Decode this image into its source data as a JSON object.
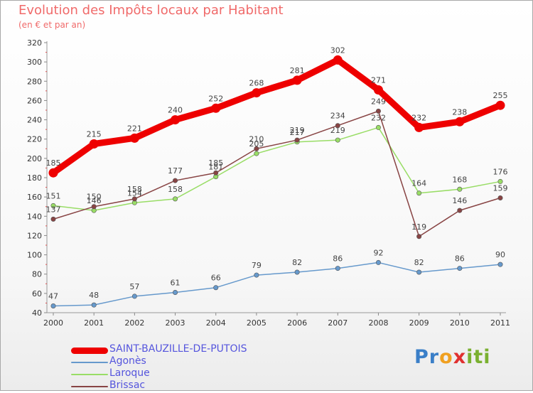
{
  "header": {
    "title": "Evolution des Impôts locaux par Habitant",
    "subtitle": "(en € et par an)"
  },
  "brand": {
    "letters": [
      "P",
      "r",
      "o",
      "x",
      "i",
      "t",
      "i"
    ],
    "colors": [
      "#3a7fc8",
      "#3a7fc8",
      "#f0a020",
      "#e03030",
      "#7ab030",
      "#7ab030",
      "#7ab030"
    ]
  },
  "chart_data": {
    "type": "line",
    "x": [
      "2000",
      "2001",
      "2002",
      "2003",
      "2004",
      "2005",
      "2006",
      "2007",
      "2008",
      "2009",
      "2010",
      "2011"
    ],
    "ylim": [
      40,
      320
    ],
    "yticks": [
      "40",
      "60",
      "80",
      "100",
      "120",
      "140",
      "160",
      "180",
      "200",
      "220",
      "240",
      "260",
      "280",
      "300",
      "320"
    ],
    "grid": false,
    "legend_position": "bottom-left",
    "series": [
      {
        "name": "SAINT-BAUZILLE-DE-PUTOIS",
        "color": "#ee0000",
        "values": [
          185,
          215,
          221,
          240,
          252,
          268,
          281,
          302,
          271,
          232,
          238,
          255
        ]
      },
      {
        "name": "Agonès",
        "color": "#6699cc",
        "values": [
          47,
          48,
          57,
          61,
          66,
          79,
          82,
          86,
          92,
          82,
          86,
          90
        ]
      },
      {
        "name": "Laroque",
        "color": "#99dd66",
        "values": [
          151,
          146,
          154,
          158,
          181,
          205,
          217,
          219,
          232,
          164,
          168,
          176
        ]
      },
      {
        "name": "Brissac",
        "color": "#884444",
        "values": [
          137,
          150,
          158,
          177,
          185,
          210,
          219,
          234,
          249,
          119,
          146,
          159
        ]
      }
    ]
  }
}
